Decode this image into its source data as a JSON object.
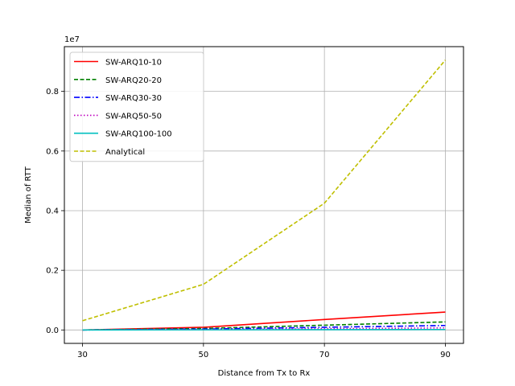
{
  "chart_data": {
    "type": "line",
    "title": "",
    "xlabel": "Distance from Tx to Rx",
    "ylabel": "Median of RTT",
    "y_offset_text": "1e7",
    "x": [
      30,
      50,
      70,
      90
    ],
    "x_ticks": [
      30,
      50,
      70,
      90
    ],
    "y_ticks": [
      0.0,
      0.2,
      0.4,
      0.6,
      0.8
    ],
    "y_tick_labels": [
      "0.0",
      "0.2",
      "0.4",
      "0.6",
      "0.8"
    ],
    "y_scale": 10000000,
    "xlim": [
      27,
      93
    ],
    "ylim": [
      -450000,
      9500000
    ],
    "grid": true,
    "legend_position": "top-left",
    "series": [
      {
        "name": "SW-ARQ10-10",
        "color": "#ff0000",
        "dash": "solid",
        "values": [
          0,
          90000,
          350000,
          600000
        ]
      },
      {
        "name": "SW-ARQ20-20",
        "color": "#008000",
        "dash": "dashed",
        "values": [
          0,
          50000,
          160000,
          270000
        ]
      },
      {
        "name": "SW-ARQ30-30",
        "color": "#0000ff",
        "dash": "dashdot",
        "values": [
          0,
          30000,
          90000,
          150000
        ]
      },
      {
        "name": "SW-ARQ50-50",
        "color": "#bf00bf",
        "dash": "dotted",
        "values": [
          0,
          15000,
          40000,
          70000
        ]
      },
      {
        "name": "SW-ARQ100-100",
        "color": "#00bfbf",
        "dash": "solid",
        "values": [
          0,
          5000,
          10000,
          15000
        ]
      },
      {
        "name": "Analytical",
        "color": "#bfbf00",
        "dash": "dashed",
        "values": [
          310000,
          1530000,
          4250000,
          9050000
        ]
      }
    ]
  }
}
